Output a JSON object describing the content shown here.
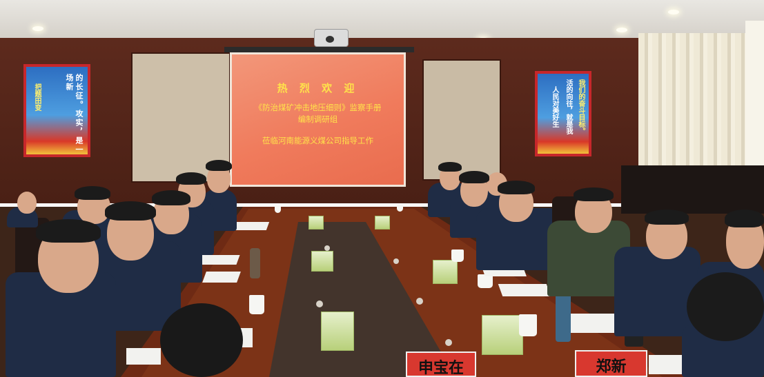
{
  "screen": {
    "line1": "热 烈 欢 迎",
    "line2": "《防治煤矿冲击地压细则》监察手册",
    "line3": "编制调研组",
    "line4": "莅临河南能源义煤公司指导工作"
  },
  "poster_left": {
    "vertical_text": "的长征。攻实，是一场新",
    "vertical_text2": "把题田变"
  },
  "poster_right": {
    "vertical_text": "活的向往，就是我",
    "vertical_text2": "人民对美好生",
    "vertical_text3": "我们的奋斗目标。"
  },
  "nameplates": {
    "left": "申宝在",
    "right": "郑新"
  },
  "colors": {
    "screen_bg": "#f07b5c",
    "screen_text": "#ffe24a",
    "table_wood": "#6e2a14",
    "wall": "#5d2a1d",
    "nameplate": "#d8382f"
  }
}
